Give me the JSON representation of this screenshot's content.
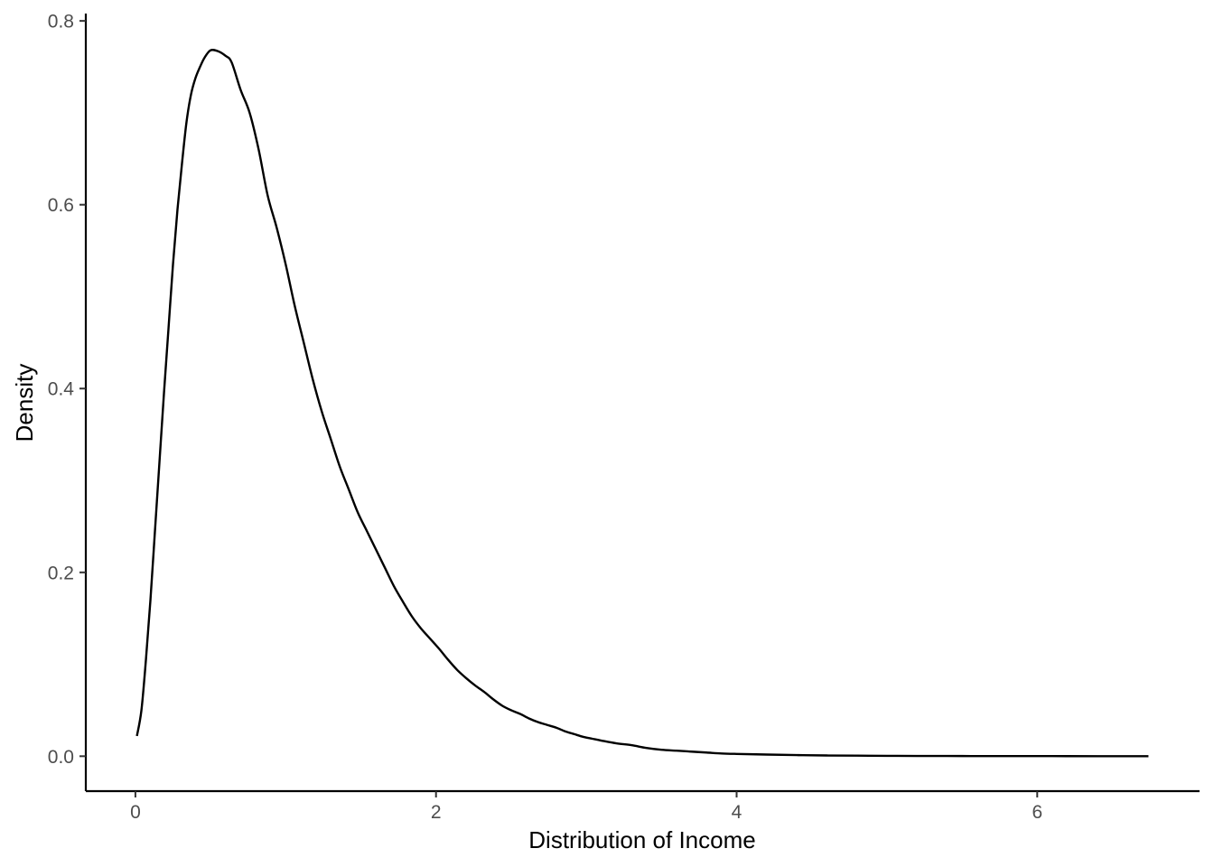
{
  "chart_data": {
    "type": "line",
    "title": "",
    "xlabel": "Distribution of Income",
    "ylabel": "Density",
    "xlim": [
      -0.33,
      7.08
    ],
    "ylim": [
      -0.038,
      0.808
    ],
    "x_ticks": [
      0,
      2,
      4,
      6
    ],
    "x_tick_labels": [
      "0",
      "2",
      "4",
      "6"
    ],
    "y_ticks": [
      0.0,
      0.2,
      0.4,
      0.6,
      0.8
    ],
    "y_tick_labels": [
      "0.0",
      "0.2",
      "0.4",
      "0.6",
      "0.8"
    ],
    "grid": false,
    "legend": "none",
    "line_color": "#000000",
    "series": [
      {
        "x": [
          0.01,
          0.04,
          0.07,
          0.1,
          0.13,
          0.16,
          0.19,
          0.22,
          0.25,
          0.28,
          0.31,
          0.34,
          0.37,
          0.4,
          0.43,
          0.46,
          0.5,
          0.55,
          0.6,
          0.64,
          0.7,
          0.76,
          0.82,
          0.88,
          0.94,
          1.0,
          1.06,
          1.12,
          1.18,
          1.24,
          1.3,
          1.36,
          1.42,
          1.48,
          1.54,
          1.6,
          1.66,
          1.72,
          1.78,
          1.84,
          1.9,
          1.96,
          2.02,
          2.08,
          2.14,
          2.2,
          2.26,
          2.32,
          2.38,
          2.44,
          2.5,
          2.56,
          2.62,
          2.68,
          2.74,
          2.8,
          2.86,
          2.92,
          2.98,
          3.04,
          3.1,
          3.2,
          3.3,
          3.4,
          3.5,
          3.6,
          3.7,
          3.8,
          3.9,
          4.0,
          4.2,
          4.4,
          4.6,
          4.8,
          5.0,
          5.2,
          5.5,
          5.8,
          6.1,
          6.4,
          6.74
        ],
        "y": [
          0.022,
          0.05,
          0.105,
          0.17,
          0.245,
          0.32,
          0.395,
          0.465,
          0.535,
          0.595,
          0.645,
          0.69,
          0.72,
          0.738,
          0.75,
          0.76,
          0.768,
          0.767,
          0.762,
          0.755,
          0.725,
          0.7,
          0.66,
          0.61,
          0.575,
          0.535,
          0.49,
          0.45,
          0.41,
          0.375,
          0.345,
          0.315,
          0.29,
          0.265,
          0.245,
          0.225,
          0.205,
          0.185,
          0.168,
          0.152,
          0.139,
          0.128,
          0.117,
          0.105,
          0.094,
          0.085,
          0.077,
          0.07,
          0.062,
          0.055,
          0.05,
          0.046,
          0.041,
          0.037,
          0.034,
          0.031,
          0.027,
          0.024,
          0.021,
          0.019,
          0.017,
          0.014,
          0.012,
          0.009,
          0.007,
          0.006,
          0.005,
          0.004,
          0.003,
          0.0025,
          0.0018,
          0.0012,
          0.0008,
          0.0006,
          0.0004,
          0.0003,
          0.0002,
          0.0001,
          0.0001,
          0.0,
          0.0
        ]
      }
    ]
  }
}
